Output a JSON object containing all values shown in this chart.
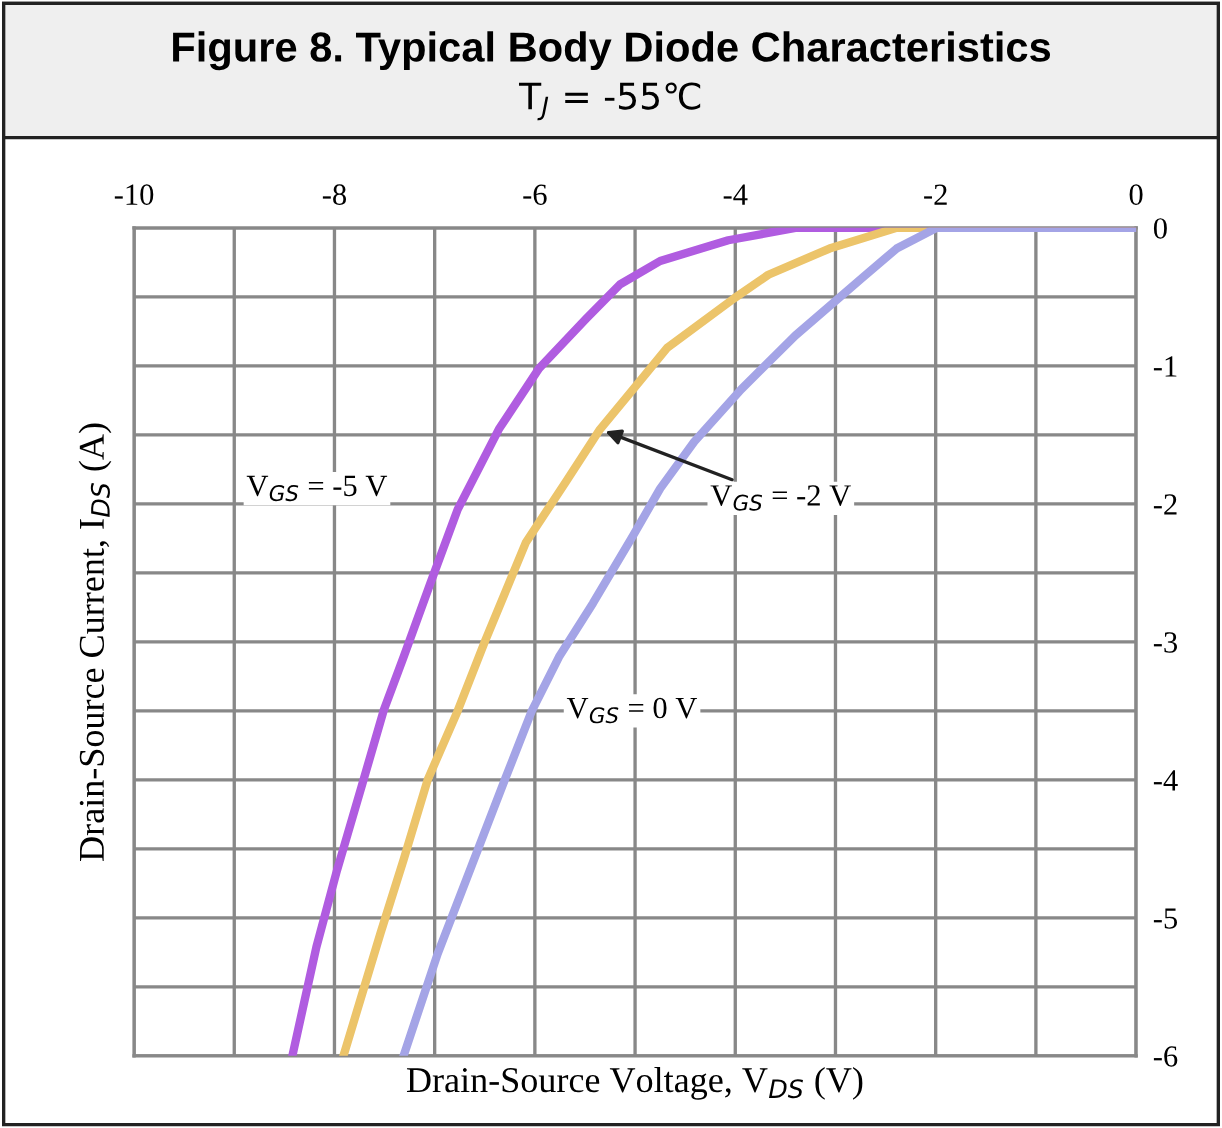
{
  "chart_data": {
    "type": "line",
    "title": "Figure 8. Typical Body Diode Characteristics",
    "subtitle": "T$_{J}$ = -55℃",
    "xlabel": "Drain-Source Voltage, V$_{DS}$ (V)",
    "ylabel": "Drain-Source Current, I$_{DS}$ (A)",
    "xlim": [
      -10,
      0
    ],
    "ylim": [
      -6,
      0
    ],
    "xticks": [
      -10,
      {
        "value": -9,
        "label": null
      },
      -8,
      {
        "value": -7,
        "label": null
      },
      -6,
      {
        "value": -5,
        "label": null
      },
      -4,
      {
        "value": -3,
        "label": null
      },
      -2,
      {
        "value": -1,
        "label": null
      },
      0
    ],
    "yticks": [
      -6,
      {
        "value": -5.5,
        "label": null
      },
      -5,
      {
        "value": -4.5,
        "label": null
      },
      -4,
      {
        "value": -3.5,
        "label": null
      },
      -3,
      {
        "value": -2.5,
        "label": null
      },
      -2,
      {
        "value": -1.5,
        "label": null
      },
      -1,
      {
        "value": -0.5,
        "label": null
      },
      0
    ],
    "grid": true,
    "legend": false,
    "marker": "none",
    "line_style": "solid",
    "series": [
      {
        "color": "#b05ce0",
        "x": [
          -8.42,
          -8.18,
          -7.98,
          -7.71,
          -7.51,
          -7.31,
          -7.04,
          -6.77,
          -6.36,
          -5.96,
          -5.49,
          -5.15,
          -4.75,
          -4.07,
          -3.4,
          -2,
          0
        ],
        "values": [
          -6.0,
          -5.21,
          -4.67,
          -4.0,
          -3.5,
          -3.11,
          -2.57,
          -2.04,
          -1.46,
          -1.02,
          -0.66,
          -0.41,
          -0.24,
          -0.09,
          0,
          0,
          0
        ]
      },
      {
        "color": "#ecc46a",
        "x": [
          -7.91,
          -7.54,
          -7.31,
          -7.07,
          -6.77,
          -6.5,
          -6.09,
          -5.69,
          -5.35,
          -5.02,
          -4.68,
          -4.01,
          -3.67,
          -3.06,
          -2.39,
          -2,
          0
        ],
        "values": [
          -6.0,
          -5.11,
          -4.58,
          -4.0,
          -3.5,
          -3.0,
          -2.28,
          -1.84,
          -1.46,
          -1.17,
          -0.87,
          -0.51,
          -0.34,
          -0.15,
          0,
          0,
          0
        ]
      },
      {
        "color": "#a4a4e6",
        "x": [
          -7.31,
          -6.97,
          -6.63,
          -6.3,
          -6.03,
          -5.76,
          -5.42,
          -5.02,
          -4.75,
          -4.41,
          -3.94,
          -3.4,
          -2.73,
          -2.39,
          -1.99,
          0
        ],
        "values": [
          -6.0,
          -5.26,
          -4.62,
          -4.0,
          -3.5,
          -3.11,
          -2.72,
          -2.23,
          -1.89,
          -1.55,
          -1.17,
          -0.78,
          -0.36,
          -0.15,
          0,
          0
        ]
      }
    ],
    "annotations": [
      {
        "text": "V$_{GS}$ = -5 V",
        "x": -6.77,
        "y": -2.04
      },
      {
        "text": "V$_{GS}$ = -2 V",
        "x": -5.35,
        "y": -1.46
      },
      {
        "text": "V$_{GS}$ = 0 V",
        "x": -6.03,
        "y": -3.5
      }
    ]
  }
}
